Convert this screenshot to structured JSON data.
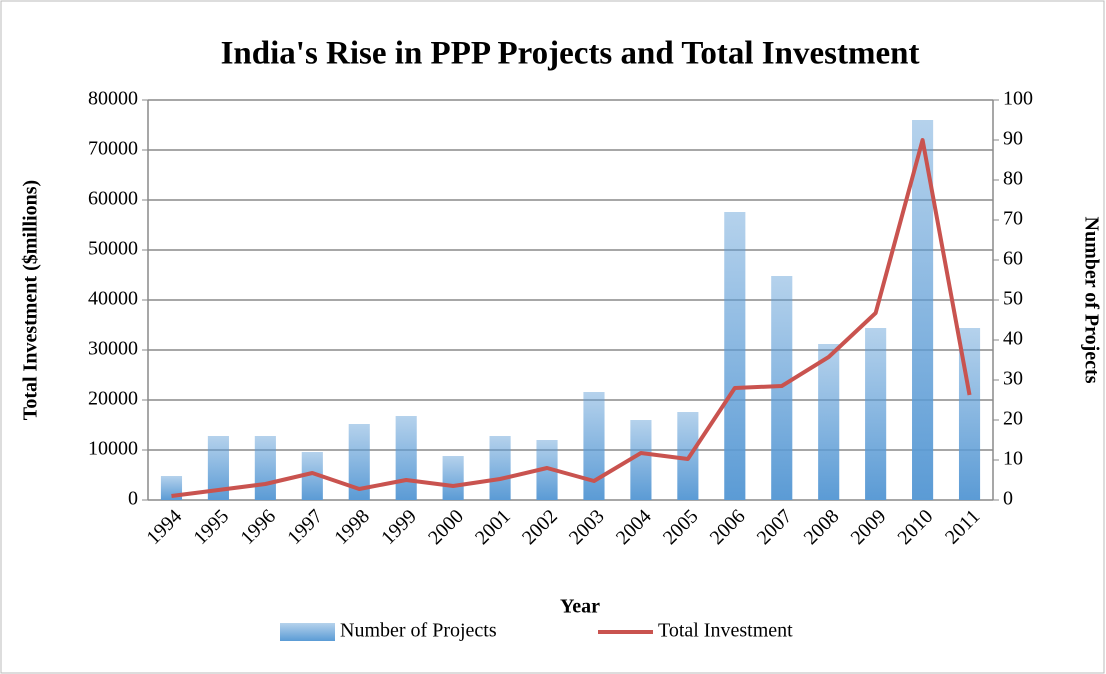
{
  "chart_data": {
    "type": "bar",
    "title": "India's Rise in PPP Projects and Total Investment",
    "x_label": "Year",
    "y_label": "Total Investment ($millions)",
    "y2_label": "Number of Projects",
    "categories": [
      "1994",
      "1995",
      "1996",
      "1997",
      "1998",
      "1999",
      "2000",
      "2001",
      "2002",
      "2003",
      "2004",
      "2005",
      "2006",
      "2007",
      "2008",
      "2009",
      "2010",
      "2011"
    ],
    "series": [
      {
        "name": "Number of Projects",
        "type": "bar",
        "axis": "y2",
        "color": "#5b9bd5",
        "values": [
          6,
          16,
          16,
          12,
          19,
          21,
          11,
          16,
          15,
          27,
          20,
          22,
          72,
          56,
          39,
          43,
          95,
          43
        ]
      },
      {
        "name": "Total Investment",
        "type": "line",
        "color": "#c9534f",
        "values": [
          800,
          2000,
          3200,
          5400,
          2200,
          4000,
          2800,
          4200,
          6400,
          3800,
          9400,
          8200,
          22400,
          22800,
          28600,
          37400,
          72000,
          21000
        ]
      }
    ],
    "ylim": [
      0,
      80000
    ],
    "yticks": [
      0,
      10000,
      20000,
      30000,
      40000,
      50000,
      60000,
      70000,
      80000
    ],
    "y2lim": [
      0,
      100
    ],
    "y2ticks": [
      0,
      10,
      20,
      30,
      40,
      50,
      60,
      70,
      80,
      90,
      100
    ],
    "grid": true,
    "legend": "bottom"
  }
}
